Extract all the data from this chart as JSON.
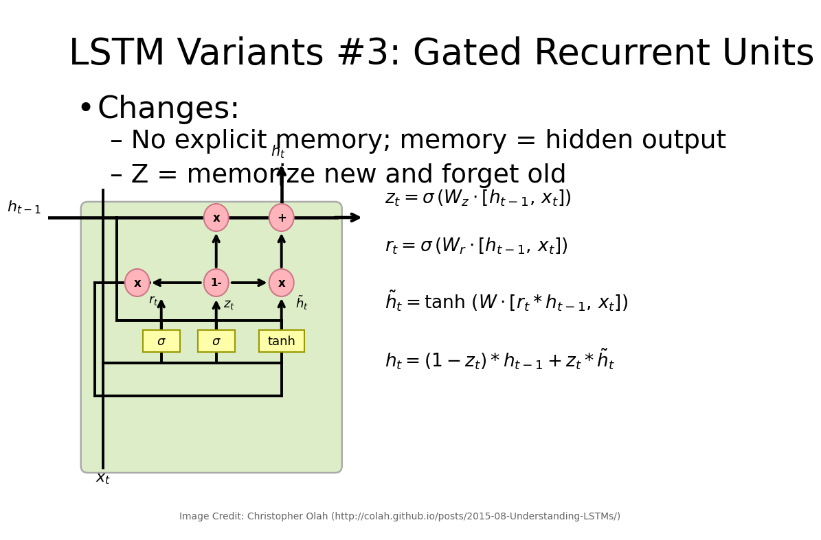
{
  "title": "LSTM Variants #3: Gated Recurrent Units",
  "title_fontsize": 38,
  "bg_color": "#ffffff",
  "bullet_text": "Changes:",
  "bullet_fontsize": 32,
  "sub_bullets": [
    "No explicit memory; memory = hidden output",
    "Z = memorize new and forget old"
  ],
  "sub_bullet_fontsize": 27,
  "diagram": {
    "box_color": "#dcedc8",
    "box_edge_color": "#aaaaaa",
    "pink_fill": "#ffb3ba",
    "pink_edge": "#cc7788",
    "yellow_fill": "#ffffaa",
    "yellow_edge": "#999900",
    "line_color": "#000000",
    "line_width": 2.8
  },
  "equations": [
    "$z_t = \\sigma\\,(W_z \\cdot [h_{t-1},\\, x_t])$",
    "$r_t = \\sigma\\,(W_r \\cdot [h_{t-1},\\, x_t])$",
    "$\\tilde{h}_t = \\tanh\\,(W \\cdot [r_t * h_{t-1},\\, x_t])$",
    "$h_t = (1 - z_t) * h_{t-1} + z_t * \\tilde{h}_t$"
  ],
  "eq_fontsize": 19,
  "credit_text": "Image Credit: Christopher Olah (http://colah.github.io/posts/2015-08-Understanding-LSTMs/)",
  "credit_fontsize": 10
}
